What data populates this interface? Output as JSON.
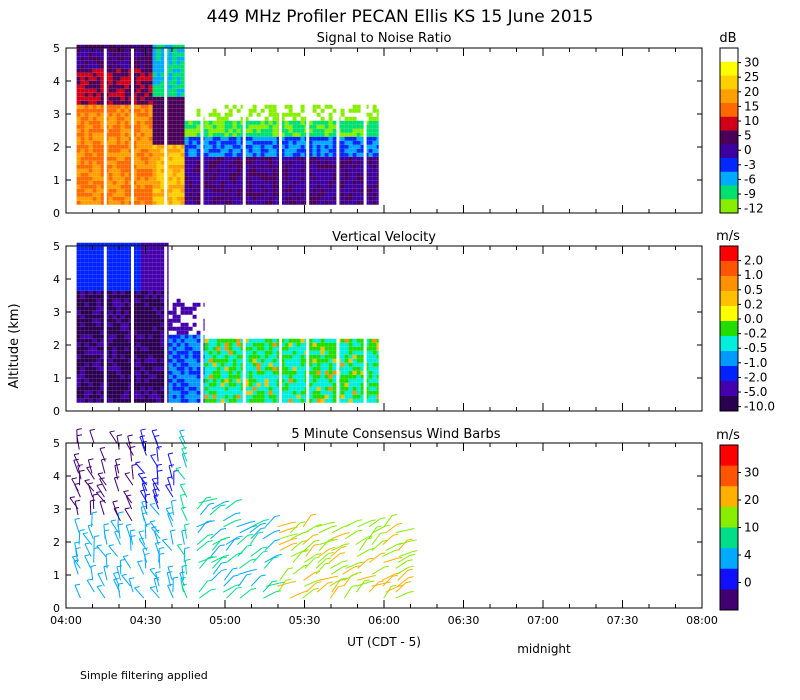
{
  "title": "449 MHz Profiler PECAN Ellis KS 15 June 2015",
  "y_axis_label": "Altitude (km)",
  "x_axis_label": "UT  (CDT - 5)",
  "x_note": "midnight",
  "footer_note": "Simple filtering applied",
  "chart_data": [
    {
      "type": "heatmap",
      "title": "Signal to Noise Ratio",
      "unit": "dB",
      "ylim": [
        0,
        5
      ],
      "yticks": [
        "0",
        "1",
        "2",
        "3",
        "4",
        "5"
      ],
      "colorbar_labels": [
        "30",
        "25",
        "20",
        "15",
        "10",
        "5",
        "0",
        "-3",
        "-6",
        "-9",
        "-12"
      ],
      "colors": [
        "#ffffff",
        "#ffff00",
        "#ffd000",
        "#ffa000",
        "#ff6a00",
        "#d0001a",
        "#4a0058",
        "#3c00a0",
        "#0028ff",
        "#00aaff",
        "#00e070",
        "#88ee00"
      ],
      "data_coverage_x": [
        "04:04",
        "05:58"
      ]
    },
    {
      "type": "heatmap",
      "title": "Vertical Velocity",
      "unit": "m/s",
      "ylim": [
        0,
        5
      ],
      "yticks": [
        "0",
        "1",
        "2",
        "3",
        "4",
        "5"
      ],
      "colorbar_labels": [
        "2.0",
        "1.0",
        "0.5",
        "0.2",
        "0.0",
        "-0.2",
        "-0.5",
        "-1.0",
        "-2.0",
        "-5.0",
        "-10.0"
      ],
      "colors": [
        "#ff0000",
        "#ff5500",
        "#ff9000",
        "#ffc000",
        "#ffff00",
        "#22dd00",
        "#00eedd",
        "#0099ff",
        "#0022ff",
        "#4400aa",
        "#2a0050"
      ],
      "data_coverage_x": [
        "04:04",
        "05:58"
      ]
    },
    {
      "type": "scatter",
      "title": "5 Minute Consensus Wind Barbs",
      "unit": "m/s",
      "ylim": [
        0,
        5
      ],
      "yticks": [
        "0",
        "1",
        "2",
        "3",
        "4",
        "5"
      ],
      "colorbar_labels": [
        "30",
        "20",
        "10",
        "4",
        "0"
      ],
      "colors": [
        "#ff0000",
        "#ff5500",
        "#ffb000",
        "#88ee00",
        "#00dd88",
        "#00aaff",
        "#1010ff",
        "#400070"
      ],
      "xticks": [
        "04:00",
        "04:30",
        "05:00",
        "05:30",
        "06:00",
        "06:30",
        "07:00",
        "07:30",
        "08:00"
      ],
      "xlim": [
        "04:00",
        "08:00"
      ]
    }
  ]
}
